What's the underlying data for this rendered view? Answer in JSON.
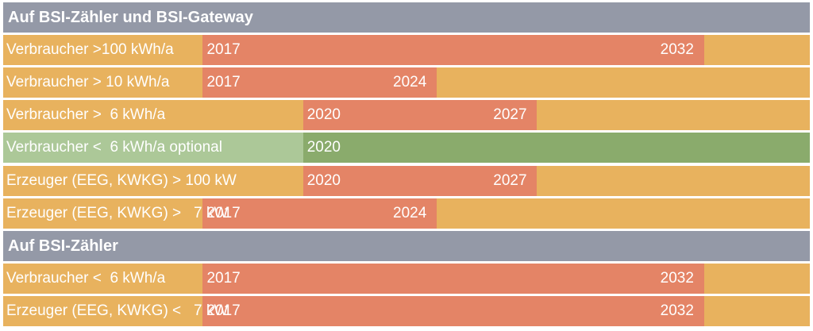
{
  "colors": {
    "header": "#9499a7",
    "row_background": "#e8b25e",
    "period_bar": "#e48466",
    "optional_background": "#acc898",
    "optional_bar": "#8aab6c",
    "text": "#ffffff"
  },
  "chart_data": {
    "type": "gantt",
    "x_range": [
      2011,
      2035
    ],
    "sections": [
      {
        "title": "Auf BSI-Zähler und BSI-Gateway",
        "rows": [
          {
            "label": "Verbraucher >100 kWh/a",
            "start": "2017",
            "end": "2032"
          },
          {
            "label": "Verbraucher > 10 kWh/a",
            "start": "2017",
            "end": "2024"
          },
          {
            "label": "Verbraucher >  6 kWh/a",
            "start": "2020",
            "end": "2027"
          },
          {
            "label": "Verbraucher <  6 kWh/a optional",
            "start": "2020",
            "end": null,
            "optional": true
          },
          {
            "label": "Erzeuger (EEG, KWKG) > 100 kW",
            "start": "2020",
            "end": "2027"
          },
          {
            "label": "Erzeuger (EEG, KWKG) >   7 kW",
            "start": "2017",
            "end": "2024"
          }
        ]
      },
      {
        "title": "Auf BSI-Zähler",
        "rows": [
          {
            "label": "Verbraucher <  6 kWh/a",
            "start": "2017",
            "end": "2032"
          },
          {
            "label": "Erzeuger (EEG, KWKG) <   7 kW",
            "start": "2017",
            "end": "2032"
          }
        ]
      }
    ]
  }
}
